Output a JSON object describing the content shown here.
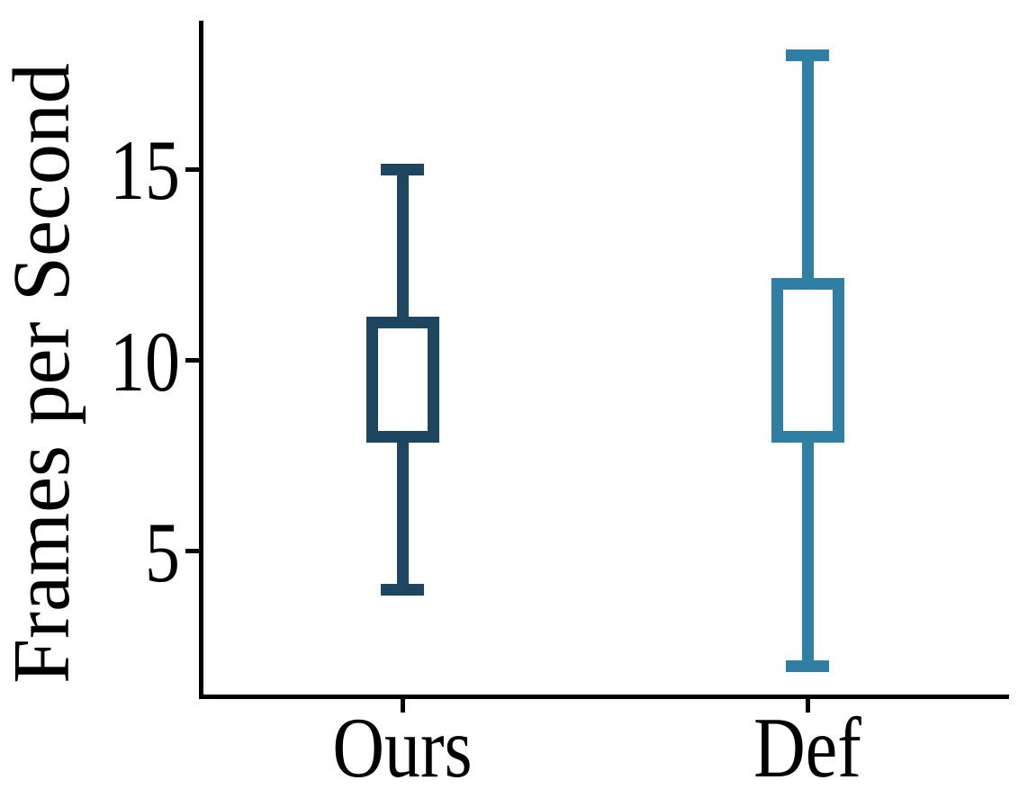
{
  "figure": {
    "background": "#ffffff",
    "axis_color": "#000000",
    "text_color": "#000000"
  },
  "chart_data": {
    "type": "box",
    "title": "",
    "xlabel": "",
    "ylabel": "Frames per Second",
    "categories": [
      "Ours",
      "Def"
    ],
    "yticks": [
      5,
      10,
      15
    ],
    "ylim": [
      1.2,
      18.9
    ],
    "grid": false,
    "legend": null,
    "series": [
      {
        "name": "Ours",
        "whisker_low": 4,
        "q1": 8,
        "median": null,
        "q3": 11,
        "whisker_high": 15,
        "color": "#1e4660"
      },
      {
        "name": "Def",
        "whisker_low": 2,
        "q1": 8,
        "median": null,
        "q3": 12,
        "whisker_high": 18,
        "color": "#2f7ea4"
      }
    ]
  }
}
